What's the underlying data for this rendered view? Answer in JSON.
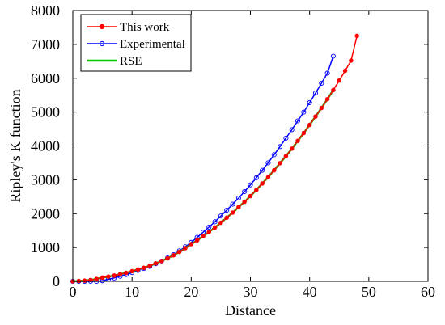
{
  "chart_data": {
    "type": "line",
    "xlabel": "Distance",
    "ylabel": "Ripley's K function",
    "xlim": [
      0,
      60
    ],
    "ylim": [
      0,
      8000
    ],
    "x_ticks": [
      0,
      10,
      20,
      30,
      40,
      50,
      60
    ],
    "y_ticks": [
      0,
      1000,
      2000,
      3000,
      4000,
      5000,
      6000,
      7000,
      8000
    ],
    "grid": false,
    "legend_position": "top-left",
    "series": [
      {
        "name": "This work",
        "color": "#ff0000",
        "marker": "filled-circle",
        "x_start": 0,
        "x_end": 48,
        "x_step": 1,
        "values": [
          0,
          10,
          20,
          40,
          70,
          110,
          140,
          170,
          210,
          250,
          300,
          350,
          400,
          460,
          530,
          600,
          680,
          770,
          870,
          980,
          1100,
          1210,
          1330,
          1460,
          1590,
          1730,
          1880,
          2030,
          2190,
          2350,
          2520,
          2700,
          2890,
          3080,
          3280,
          3490,
          3700,
          3920,
          4150,
          4380,
          4620,
          4870,
          5120,
          5380,
          5650,
          5930,
          6220,
          6520,
          7250
        ]
      },
      {
        "name": "Experimental",
        "color": "#0000ff",
        "marker": "open-circle",
        "x_start": 0,
        "x_end": 44,
        "x_step": 1,
        "values": [
          0,
          0,
          0,
          0,
          0,
          20,
          60,
          100,
          150,
          200,
          260,
          320,
          380,
          440,
          520,
          600,
          690,
          790,
          900,
          1020,
          1150,
          1300,
          1450,
          1600,
          1760,
          1930,
          2100,
          2280,
          2460,
          2650,
          2850,
          3060,
          3280,
          3500,
          3740,
          3980,
          4230,
          4480,
          4740,
          5000,
          5280,
          5560,
          5850,
          6150,
          6650
        ]
      },
      {
        "name": "RSE",
        "color": "#00cc00",
        "marker": "none",
        "x_start": 0,
        "x_end": 44,
        "x_step": 1,
        "values": [
          0,
          10,
          20,
          40,
          70,
          110,
          140,
          170,
          210,
          250,
          300,
          350,
          400,
          460,
          530,
          600,
          680,
          770,
          870,
          980,
          1100,
          1210,
          1330,
          1460,
          1590,
          1730,
          1880,
          2030,
          2190,
          2350,
          2520,
          2700,
          2890,
          3080,
          3280,
          3490,
          3700,
          3920,
          4150,
          4380,
          4620,
          4870,
          5120,
          5380,
          5650
        ]
      }
    ]
  }
}
